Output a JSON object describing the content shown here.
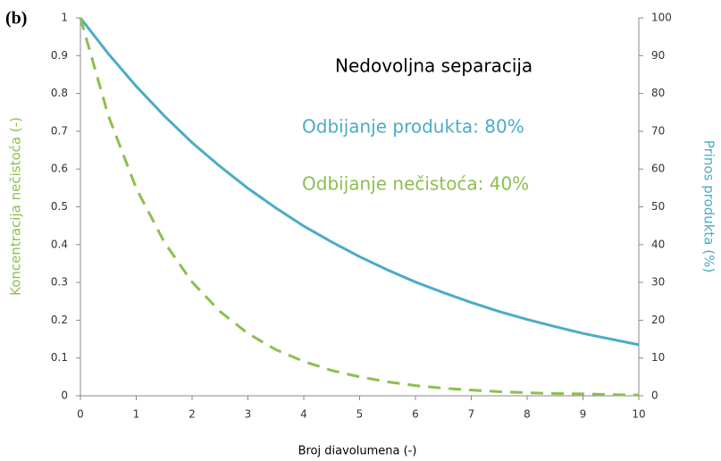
{
  "chart_data": {
    "type": "line",
    "panel_label": "(b)",
    "annotations": [
      "Nedovoljna separacija",
      "Odbijanje produkta: 80%",
      "Odbijanje nečistoća: 40%"
    ],
    "xlabel": "Broj diavolumena (-)",
    "ylabel": "Koncentracija nečistoća (-)",
    "y2label": "Prinos produkta (%)",
    "x": [
      0,
      0.5,
      1,
      1.5,
      2,
      2.5,
      3,
      3.5,
      4,
      4.5,
      5,
      5.5,
      6,
      6.5,
      7,
      7.5,
      8,
      8.5,
      9,
      9.5,
      10
    ],
    "series": [
      {
        "color": "#4bacc6",
        "axis": "y2",
        "dashed": false,
        "values": [
          100,
          90.5,
          81.9,
          74.1,
          67.0,
          60.7,
          54.9,
          49.7,
          44.9,
          40.7,
          36.8,
          33.3,
          30.1,
          27.3,
          24.7,
          22.3,
          20.2,
          18.3,
          16.5,
          15.0,
          13.5
        ]
      },
      {
        "color": "#8dbf4f",
        "axis": "y",
        "dashed": true,
        "values": [
          1,
          0.741,
          0.549,
          0.407,
          0.301,
          0.223,
          0.165,
          0.122,
          0.091,
          0.067,
          0.05,
          0.037,
          0.027,
          0.02,
          0.015,
          0.011,
          0.008,
          0.006,
          0.005,
          0.003,
          0.002
        ]
      }
    ],
    "xlim": [
      0,
      10
    ],
    "xticks": [
      0,
      1,
      2,
      3,
      4,
      5,
      6,
      7,
      8,
      9,
      10
    ],
    "ylim": [
      0,
      1
    ],
    "yticks": [
      0,
      0.1,
      0.2,
      0.3,
      0.4,
      0.5,
      0.6,
      0.7,
      0.8,
      0.9,
      1
    ],
    "y2lim": [
      0,
      100
    ],
    "y2ticks": [
      0,
      10,
      20,
      30,
      40,
      50,
      60,
      70,
      80,
      90,
      100
    ],
    "ylabel_color": "#8dbf4f",
    "y2label_color": "#4bacc6",
    "annotation_colors": [
      "#000000",
      "#4bacc6",
      "#8dbf4f"
    ]
  }
}
